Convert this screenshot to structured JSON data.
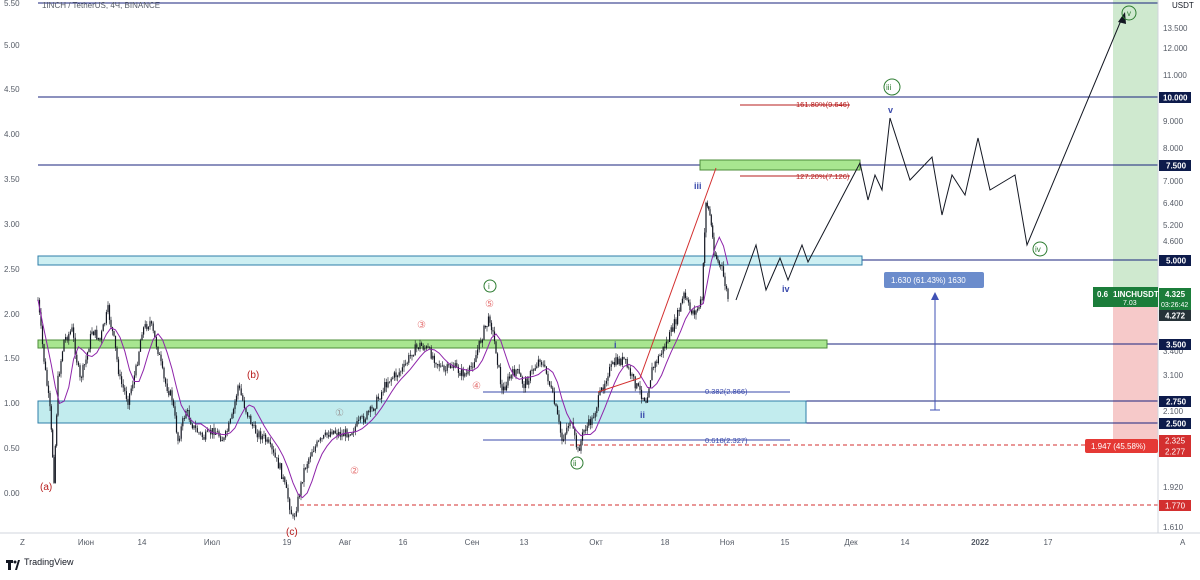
{
  "header": {
    "title": "1INCH / TetherUS, 4Ч, BINANCE"
  },
  "footer": {
    "brand": "TradingView"
  },
  "axis": {
    "currency": "USDT",
    "corner_left": "Z",
    "corner_right": "A"
  },
  "colors": {
    "level_line": "#1a237e",
    "candle": "#131722",
    "wave_line": "#131722",
    "green_zone": "#a5e890",
    "cyan_zone": "#bfeff2",
    "target_green": "#c8e6c9",
    "stop_red": "#f4c2c2",
    "fib_red": "#b71c1c",
    "blue_label": "#6b8ccc",
    "price_tag_dark": "#0d1b4b"
  },
  "chart_data": {
    "type": "line",
    "title": "1INCH / TetherUS, 4Ч, BINANCE",
    "x_tick_labels": [
      "Июн",
      "14",
      "Июл",
      "19",
      "Авг",
      "16",
      "Сен",
      "13",
      "Окт",
      "18",
      "Ноя",
      "15",
      "Дек",
      "14",
      "2022",
      "17"
    ],
    "left_axis": {
      "ticks": [
        "5.50",
        "5.00",
        "4.50",
        "4.00",
        "3.50",
        "3.00",
        "2.50",
        "2.00",
        "1.50",
        "1.00",
        "0.50",
        "0.00"
      ],
      "ylim": [
        -0.2,
        5.5
      ]
    },
    "right_axis": {
      "ticks": [
        "13.500",
        "12.000",
        "11.000",
        "9.000",
        "8.000",
        "7.000",
        "6.400",
        "5.200",
        "4.600",
        "3.400",
        "3.100",
        "2.100",
        "1.920",
        "1.610"
      ]
    },
    "price_lines": [
      {
        "label": "10.000"
      },
      {
        "label": "7.500"
      },
      {
        "label": "5.000"
      },
      {
        "label": "3.500"
      },
      {
        "label": "2.750"
      },
      {
        "label": "2.500"
      }
    ],
    "right_tags": {
      "current_price": "4.325",
      "countdown": "03:26:42",
      "prev_price": "4.272",
      "stop_a": "2.325",
      "stop_b": "2.277",
      "stop_level": "1.770",
      "ticker": "1INCHUSDT",
      "ticker_prefix": "0.6",
      "ticker_sub": "7.03"
    },
    "fib_levels": [
      {
        "label": "161.80%(9.646)"
      },
      {
        "label": "127.20%(7.126)"
      },
      {
        "label": "0.382(2.866)"
      },
      {
        "label": "0.618(2.327)"
      }
    ],
    "measure_labels": {
      "up": "1.630 (61.43%) 1630",
      "down": "1.947 (45.58%)"
    },
    "wave_labels": {
      "a": "(a)",
      "b": "(b)",
      "c": "(c)",
      "c1": "①",
      "c2": "②",
      "c3": "③",
      "c4": "④",
      "c5": "⑤",
      "g_i": "i",
      "g_ii": "ii",
      "g_iii": "iii",
      "g_iv": "iv",
      "g_v": "v",
      "b_i": "i",
      "b_ii": "ii",
      "b_iii": "iii",
      "b_iv": "iv",
      "b_v": "v"
    }
  }
}
